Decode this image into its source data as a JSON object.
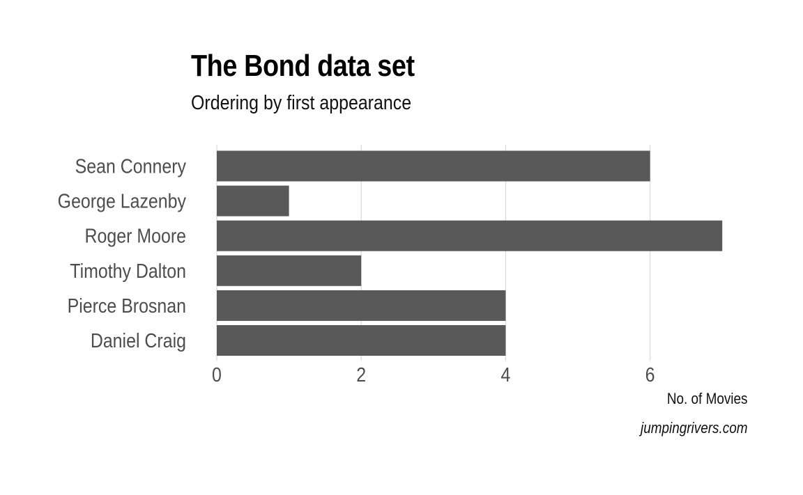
{
  "chart_data": {
    "type": "bar",
    "orientation": "horizontal",
    "title": "The Bond data set",
    "subtitle": "Ordering by first appearance",
    "xlabel": "No. of Movies",
    "ylabel": "",
    "caption": "jumpingrivers.com",
    "categories": [
      "Sean Connery",
      "George Lazenby",
      "Roger Moore",
      "Timothy Dalton",
      "Pierce Brosnan",
      "Daniel Craig"
    ],
    "values": [
      6,
      1,
      7,
      2,
      4,
      4
    ],
    "xlim": [
      0,
      7
    ],
    "x_ticks": [
      0,
      2,
      4,
      6
    ],
    "grid": "vertical major",
    "legend": "none",
    "colors": {
      "bar": "#595959",
      "grid": "#d9d9d9",
      "text": "#4d4d4d"
    }
  }
}
